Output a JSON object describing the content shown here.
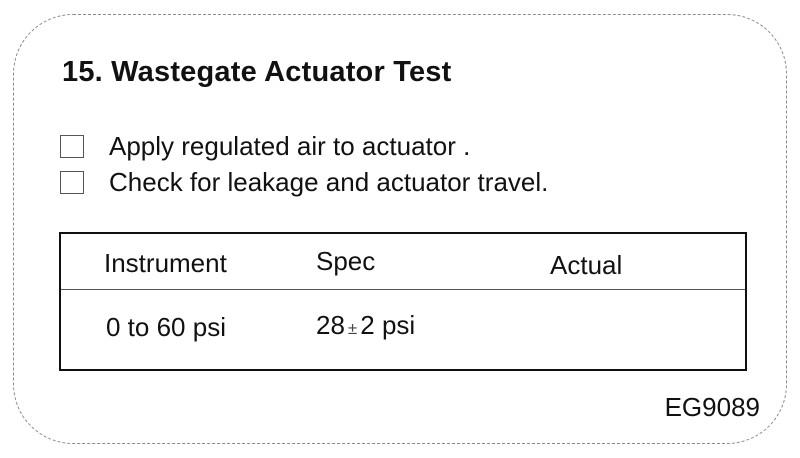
{
  "title": "15. Wastegate Actuator Test",
  "steps": [
    {
      "text": "Apply regulated air to actuator ."
    },
    {
      "text": "Check for leakage and actuator travel."
    }
  ],
  "table": {
    "headers": [
      "Instrument",
      "Spec",
      "Actual"
    ],
    "rows": [
      {
        "instrument": "0 to 60 psi",
        "spec_value": "28",
        "spec_symbol": "±",
        "spec_tolerance": "2 psi",
        "actual": ""
      }
    ]
  },
  "reference_code": "EG9089"
}
